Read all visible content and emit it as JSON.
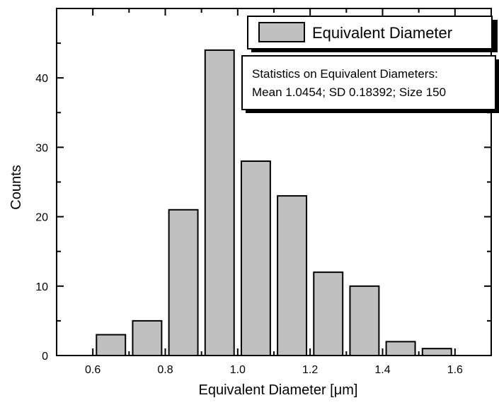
{
  "chart_data": {
    "type": "bar",
    "title": "",
    "xlabel": "Equivalent Diameter [μm]",
    "ylabel": "Counts",
    "xlim": [
      0.5,
      1.7
    ],
    "ylim": [
      0,
      50
    ],
    "x_ticks": [
      0.6,
      0.8,
      1.0,
      1.2,
      1.4,
      1.6
    ],
    "x_tick_labels": [
      "0.6",
      "0.8",
      "1.0",
      "1.2",
      "1.4",
      "1.6"
    ],
    "y_ticks": [
      0,
      10,
      20,
      30,
      40
    ],
    "y_tick_labels": [
      "0",
      "10",
      "20",
      "30",
      "40"
    ],
    "bin_width": 0.1,
    "bar_width": 0.08,
    "bin_centers": [
      0.65,
      0.75,
      0.85,
      0.95,
      1.05,
      1.15,
      1.25,
      1.35,
      1.45,
      1.55
    ],
    "series": [
      {
        "name": "Equivalent Diameter",
        "values": [
          3,
          5,
          21,
          44,
          28,
          23,
          12,
          10,
          2,
          1
        ]
      }
    ],
    "bar_color": "#c0c0c0",
    "grid": false,
    "legend": {
      "placement": "top-right",
      "label": "Equivalent Diameter"
    },
    "stats_box": {
      "line1": "Statistics on Equivalent Diameters:",
      "line2": "Mean 1.0454; SD 0.18392; Size 150"
    }
  }
}
